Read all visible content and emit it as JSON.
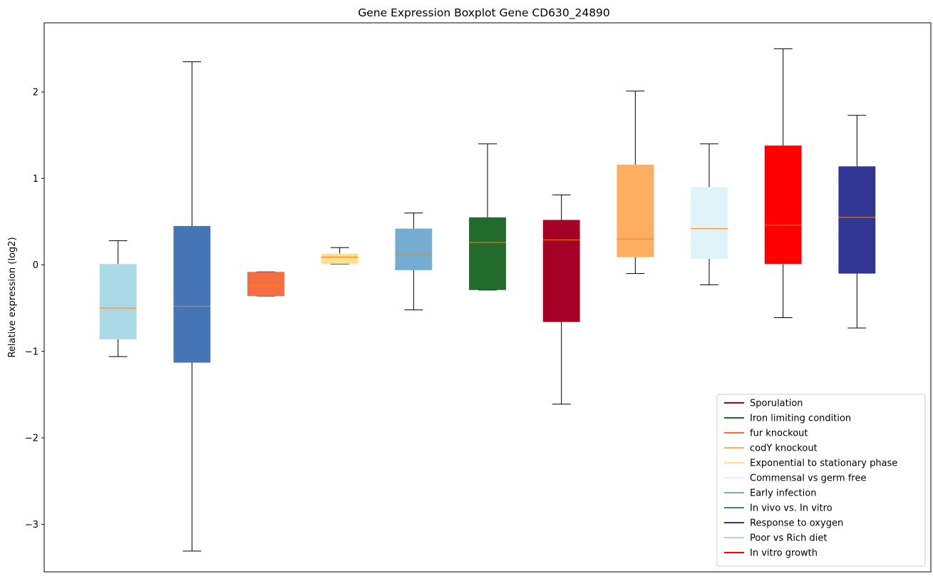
{
  "chart_data": {
    "type": "boxplot",
    "title": "Gene Expression Boxplot Gene CD630_24890",
    "xlabel": "",
    "ylabel": "Relative expression (log2)",
    "ylim": [
      -3.55,
      2.8
    ],
    "yticks": [
      -3,
      -2,
      -1,
      0,
      1,
      2
    ],
    "ytick_labels": [
      "−3",
      "−2",
      "−1",
      "0",
      "1",
      "2"
    ],
    "grid": false,
    "legend_position": "lower-right",
    "median_color": "#ff7f0e",
    "boxes": [
      {
        "name": "Poor vs Rich diet",
        "color": "#add8e6",
        "whislo": -1.06,
        "q1": -0.86,
        "med": -0.5,
        "q3": 0.01,
        "whishi": 0.28
      },
      {
        "name": "In vivo vs. In vitro",
        "color": "#4575b4",
        "whislo": -3.31,
        "q1": -1.13,
        "med": -0.48,
        "q3": 0.45,
        "whishi": 2.35
      },
      {
        "name": "fur knockout",
        "color": "#f46d43",
        "whislo": -0.36,
        "q1": -0.36,
        "med": -0.24,
        "q3": -0.08,
        "whishi": -0.08
      },
      {
        "name": "Exponential to stationary phase",
        "color": "#fee090",
        "whislo": 0.01,
        "q1": 0.01,
        "med": 0.09,
        "q3": 0.13,
        "whishi": 0.2
      },
      {
        "name": "Early infection",
        "color": "#74add1",
        "whislo": -0.52,
        "q1": -0.06,
        "med": 0.12,
        "q3": 0.42,
        "whishi": 0.6
      },
      {
        "name": "Iron limiting condition",
        "color": "#236b2c",
        "whislo": -0.29,
        "q1": -0.29,
        "med": 0.26,
        "q3": 0.55,
        "whishi": 1.4
      },
      {
        "name": "Sporulation",
        "color": "#a50026",
        "whislo": -1.61,
        "q1": -0.66,
        "med": 0.29,
        "q3": 0.52,
        "whishi": 0.81
      },
      {
        "name": "codY knockout",
        "color": "#fdae61",
        "whislo": -0.1,
        "q1": 0.09,
        "med": 0.3,
        "q3": 1.16,
        "whishi": 2.01
      },
      {
        "name": "Commensal vs germ free",
        "color": "#e0f3f8",
        "whislo": -0.23,
        "q1": 0.07,
        "med": 0.42,
        "q3": 0.9,
        "whishi": 1.4
      },
      {
        "name": "In vitro growth",
        "color": "#ff0000",
        "whislo": -0.61,
        "q1": 0.01,
        "med": 0.46,
        "q3": 1.38,
        "whishi": 2.5
      },
      {
        "name": "Response to oxygen",
        "color": "#313695",
        "whislo": -0.73,
        "q1": -0.1,
        "med": 0.55,
        "q3": 1.14,
        "whishi": 1.73
      }
    ],
    "legend": [
      {
        "label": "Sporulation",
        "color": "#a50026"
      },
      {
        "label": "Iron limiting condition",
        "color": "#236b2c"
      },
      {
        "label": "fur knockout",
        "color": "#f46d43"
      },
      {
        "label": "codY knockout",
        "color": "#fdae61"
      },
      {
        "label": "Exponential to stationary phase",
        "color": "#fee090"
      },
      {
        "label": "Commensal vs germ free",
        "color": "#e0f3f8"
      },
      {
        "label": "Early infection",
        "color": "#74add1"
      },
      {
        "label": "In vivo vs. In vitro",
        "color": "#4575b4"
      },
      {
        "label": "Response to oxygen",
        "color": "#313695"
      },
      {
        "label": "Poor vs Rich diet",
        "color": "#add8e6"
      },
      {
        "label": "In vitro growth",
        "color": "#ff0000"
      }
    ]
  }
}
